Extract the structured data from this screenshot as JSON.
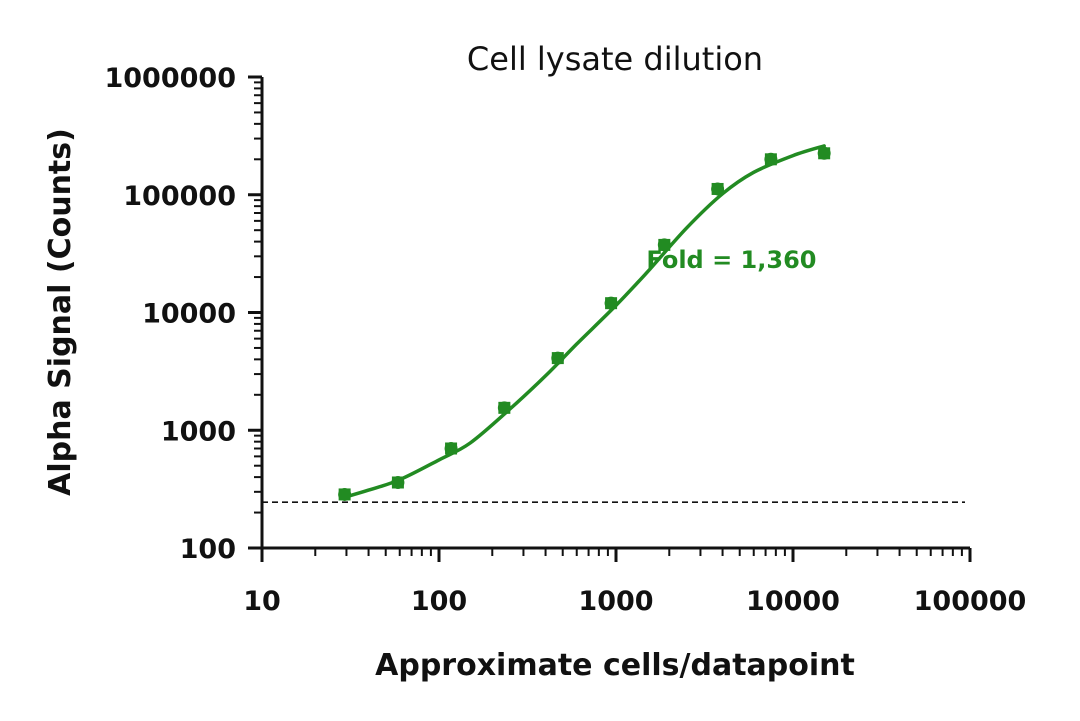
{
  "chart_data": {
    "type": "scatter",
    "title": "Cell lysate dilution",
    "xlabel": "Approximate cells/datapoint",
    "ylabel": "Alpha Signal (Counts)",
    "x_scale": "log",
    "y_scale": "log",
    "xlim": [
      10,
      100000
    ],
    "ylim": [
      100,
      1000000
    ],
    "x_ticks": [
      10,
      100,
      1000,
      10000,
      100000
    ],
    "x_tick_labels": [
      "10",
      "100",
      "1000",
      "10000",
      "100000"
    ],
    "y_ticks": [
      100,
      1000,
      10000,
      100000,
      1000000
    ],
    "y_tick_labels": [
      "100",
      "1000",
      "10000",
      "100000",
      "1000000"
    ],
    "grid": false,
    "legend": "none",
    "series": [
      {
        "color": "#228B22",
        "x": [
          29.3,
          58.6,
          117,
          234,
          469,
          938,
          1875,
          3750,
          7500,
          15000
        ],
        "y": [
          285,
          360,
          700,
          1550,
          4100,
          12000,
          37500,
          112000,
          200000,
          225000
        ],
        "fit": "sigmoidal",
        "fit_curve": {
          "x": [
            29.3,
            40,
            60,
            100,
            150,
            250,
            400,
            600,
            1000,
            1500,
            2500,
            4000,
            6000,
            10000,
            15000
          ],
          "y": [
            270,
            310,
            380,
            560,
            780,
            1500,
            2900,
            5400,
            11500,
            22000,
            52000,
            102000,
            155000,
            215000,
            260000
          ]
        }
      }
    ],
    "baseline": {
      "y": 245,
      "style": "dashed"
    },
    "annotations": [
      {
        "text": "Fold = 1,360",
        "x": 2500,
        "y": 28000,
        "color": "#228B22"
      }
    ]
  }
}
